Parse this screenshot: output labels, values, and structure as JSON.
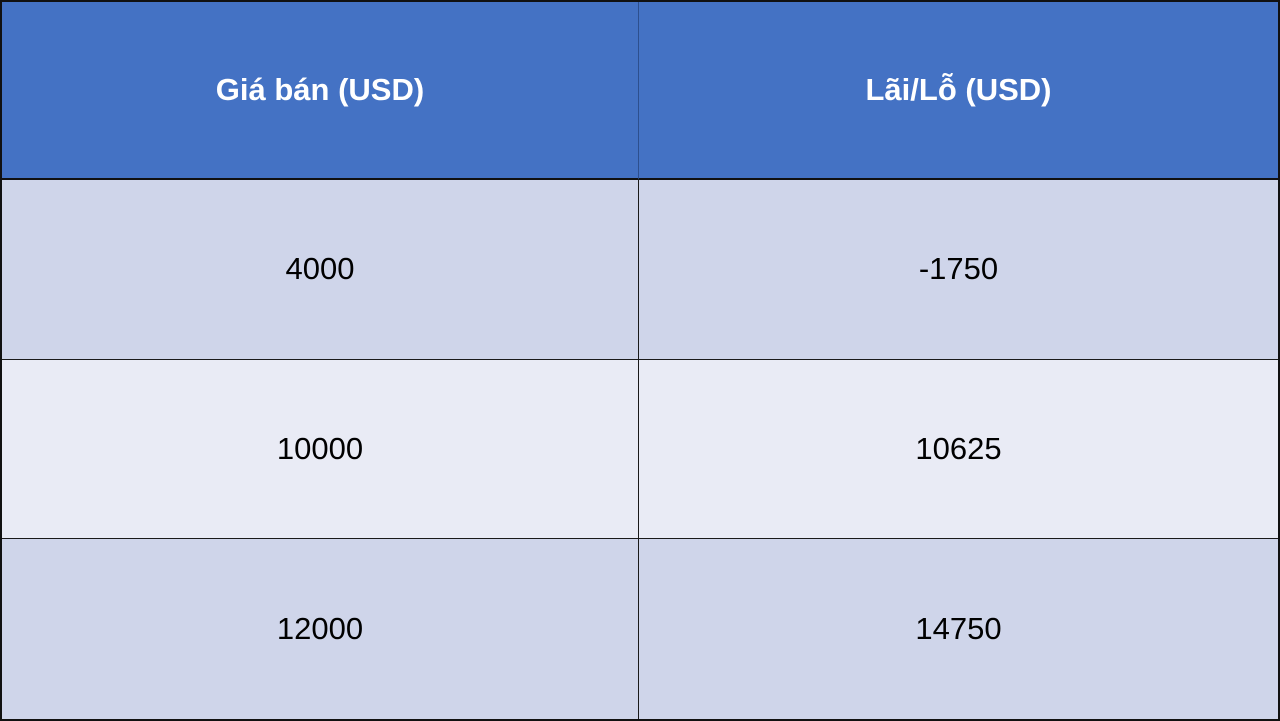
{
  "table": {
    "headers": [
      "Giá bán (USD)",
      "Lãi/Lỗ (USD)"
    ],
    "rows": [
      [
        "4000",
        "-1750"
      ],
      [
        "10000",
        "10625"
      ],
      [
        "12000",
        "14750"
      ]
    ],
    "colors": {
      "header_bg": "#4472c4",
      "header_text": "#ffffff",
      "row_odd_bg": "#cfd5ea",
      "row_even_bg": "#e9ebf5"
    }
  }
}
